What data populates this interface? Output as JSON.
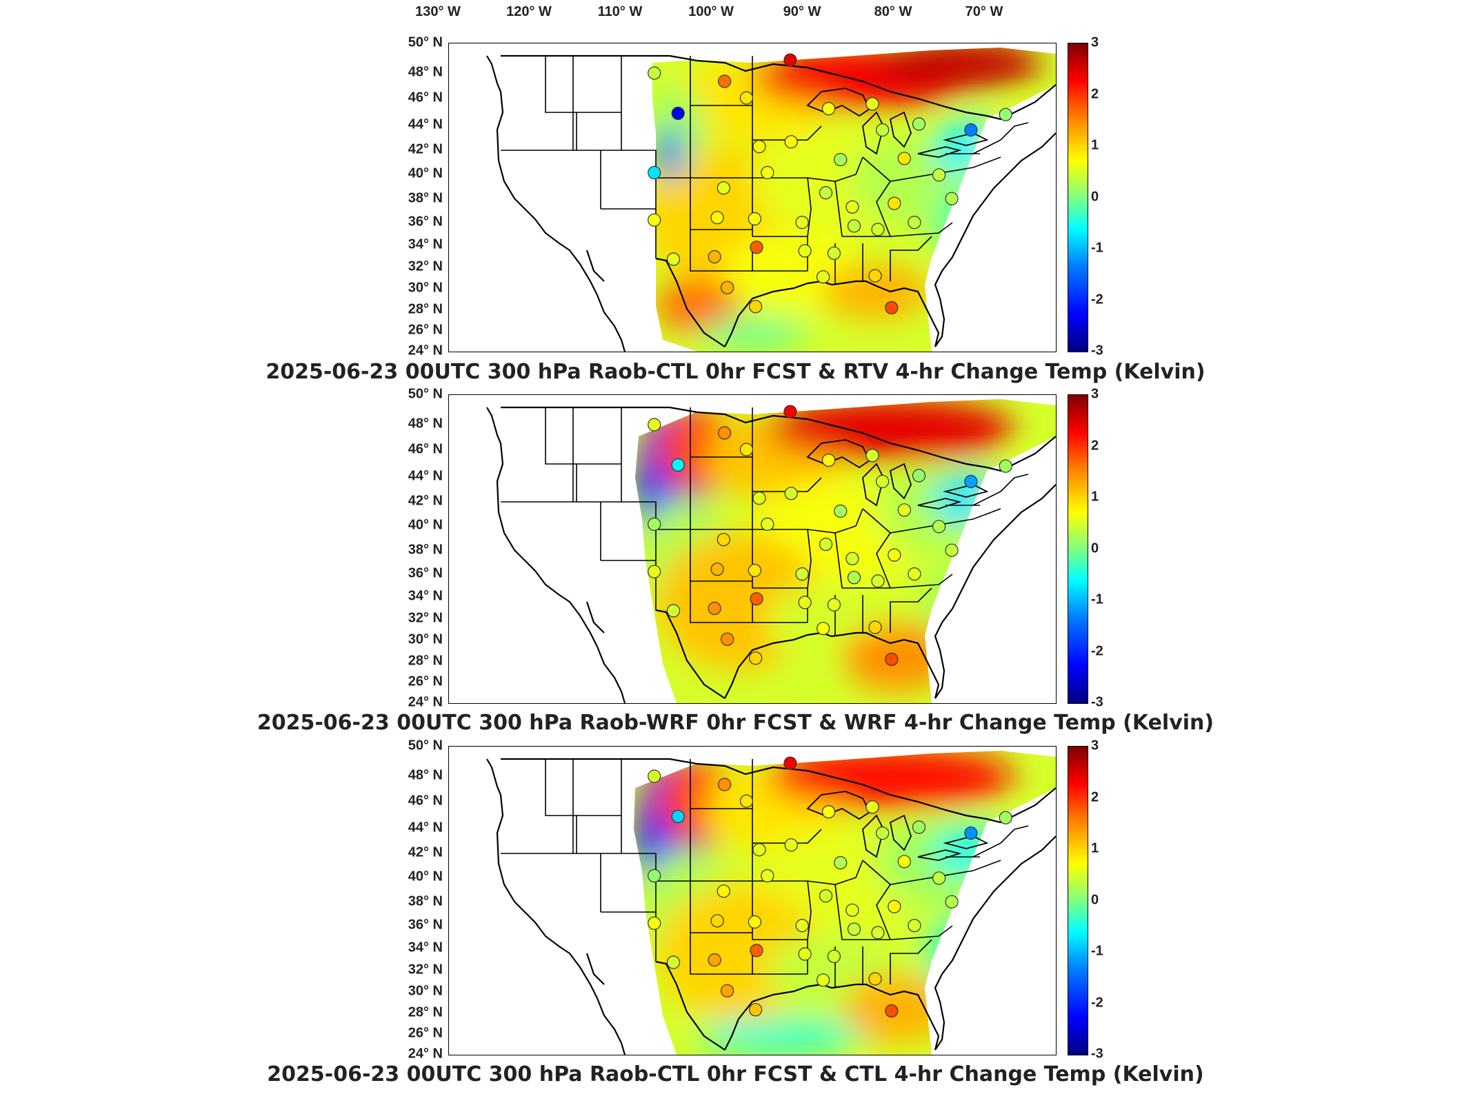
{
  "lon_labels": [
    "130° W",
    "120° W",
    "110° W",
    "100° W",
    "90° W",
    "80° W",
    "70° W"
  ],
  "lat_labels": [
    "50° N",
    "48° N",
    "46° N",
    "44° N",
    "42° N",
    "40° N",
    "38° N",
    "36° N",
    "34° N",
    "32° N",
    "30° N",
    "28° N",
    "26° N",
    "24° N"
  ],
  "colorbar": {
    "ticks": [
      "3",
      "2",
      "1",
      "0",
      "-1",
      "-2",
      "-3"
    ],
    "min": -3,
    "max": 3,
    "colors": [
      "#00007f",
      "#0000ff",
      "#0080ff",
      "#00ffff",
      "#80ff80",
      "#ffff00",
      "#ff8000",
      "#ff0000",
      "#7f0000"
    ]
  },
  "panels": [
    {
      "title": "2025-06-23 00UTC 300 hPa Raob-CTL 0hr FCST & RTV 4-hr Change Temp (Kelvin)"
    },
    {
      "title": "2025-06-23 00UTC 300 hPa Raob-WRF 0hr FCST & WRF 4-hr Change Temp (Kelvin)"
    },
    {
      "title": "2025-06-23 00UTC 300 hPa Raob-CTL 0hr FCST & CTL 4-hr Change Temp (Kelvin)"
    }
  ],
  "stations": [
    {
      "lon": -108.5,
      "lat": 47.5,
      "v": [
        0.4,
        0.6,
        0.5
      ]
    },
    {
      "lon": -100.8,
      "lat": 46.8,
      "v": [
        1.6,
        1.4,
        1.4
      ]
    },
    {
      "lon": -98.4,
      "lat": 45.4,
      "v": [
        0.9,
        0.9,
        0.9
      ]
    },
    {
      "lon": -93.6,
      "lat": 48.6,
      "v": [
        2.4,
        2.3,
        2.3
      ]
    },
    {
      "lon": -89.4,
      "lat": 44.5,
      "v": [
        0.7,
        0.8,
        0.7
      ]
    },
    {
      "lon": -84.6,
      "lat": 44.9,
      "v": [
        0.6,
        0.5,
        0.6
      ]
    },
    {
      "lon": -79.5,
      "lat": 43.2,
      "v": [
        0.2,
        0.1,
        0.2
      ]
    },
    {
      "lon": -73.8,
      "lat": 42.7,
      "v": [
        -1.5,
        -1.3,
        -1.4
      ]
    },
    {
      "lon": -70.0,
      "lat": 44.0,
      "v": [
        0.1,
        0.2,
        0.2
      ]
    },
    {
      "lon": -105.9,
      "lat": 44.1,
      "v": [
        -2.3,
        -0.8,
        -1.0
      ]
    },
    {
      "lon": -108.5,
      "lat": 39.1,
      "v": [
        -0.9,
        0.2,
        0.1
      ]
    },
    {
      "lon": -97.0,
      "lat": 41.3,
      "v": [
        0.8,
        0.6,
        0.6
      ]
    },
    {
      "lon": -93.5,
      "lat": 41.7,
      "v": [
        0.8,
        0.5,
        0.6
      ]
    },
    {
      "lon": -88.1,
      "lat": 40.2,
      "v": [
        0.2,
        0.2,
        0.3
      ]
    },
    {
      "lon": -83.5,
      "lat": 42.7,
      "v": [
        0.4,
        0.5,
        0.4
      ]
    },
    {
      "lon": -81.1,
      "lat": 40.3,
      "v": [
        0.9,
        0.6,
        0.7
      ]
    },
    {
      "lon": -96.1,
      "lat": 39.1,
      "v": [
        0.7,
        0.6,
        0.6
      ]
    },
    {
      "lon": -100.9,
      "lat": 37.8,
      "v": [
        0.6,
        1.0,
        0.8
      ]
    },
    {
      "lon": -86.8,
      "lat": 36.2,
      "v": [
        0.6,
        0.5,
        0.6
      ]
    },
    {
      "lon": -82.2,
      "lat": 36.5,
      "v": [
        0.9,
        0.7,
        0.8
      ]
    },
    {
      "lon": -77.3,
      "lat": 38.9,
      "v": [
        0.4,
        0.3,
        0.4
      ]
    },
    {
      "lon": -89.7,
      "lat": 37.4,
      "v": [
        0.4,
        0.5,
        0.5
      ]
    },
    {
      "lon": -108.5,
      "lat": 35.1,
      "v": [
        0.7,
        0.6,
        0.7
      ]
    },
    {
      "lon": -101.6,
      "lat": 35.3,
      "v": [
        0.8,
        1.2,
        1.0
      ]
    },
    {
      "lon": -97.5,
      "lat": 35.2,
      "v": [
        0.7,
        0.9,
        0.8
      ]
    },
    {
      "lon": -92.3,
      "lat": 34.9,
      "v": [
        0.6,
        0.5,
        0.6
      ]
    },
    {
      "lon": -86.6,
      "lat": 34.6,
      "v": [
        0.4,
        0.3,
        0.4
      ]
    },
    {
      "lon": -84.0,
      "lat": 34.3,
      "v": [
        0.5,
        0.5,
        0.5
      ]
    },
    {
      "lon": -80.0,
      "lat": 34.9,
      "v": [
        0.4,
        0.6,
        0.5
      ]
    },
    {
      "lon": -75.9,
      "lat": 36.9,
      "v": [
        0.3,
        0.4,
        0.3
      ]
    },
    {
      "lon": -106.4,
      "lat": 31.8,
      "v": [
        0.6,
        0.5,
        0.5
      ]
    },
    {
      "lon": -101.9,
      "lat": 32.0,
      "v": [
        1.2,
        1.4,
        1.3
      ]
    },
    {
      "lon": -97.3,
      "lat": 32.8,
      "v": [
        1.7,
        1.7,
        1.7
      ]
    },
    {
      "lon": -92.0,
      "lat": 32.5,
      "v": [
        0.6,
        0.6,
        0.6
      ]
    },
    {
      "lon": -88.8,
      "lat": 32.3,
      "v": [
        0.5,
        0.6,
        0.5
      ]
    },
    {
      "lon": -90.0,
      "lat": 30.3,
      "v": [
        0.6,
        0.7,
        0.6
      ]
    },
    {
      "lon": -84.3,
      "lat": 30.4,
      "v": [
        1.0,
        1.0,
        1.0
      ]
    },
    {
      "lon": -100.5,
      "lat": 29.4,
      "v": [
        1.2,
        1.4,
        1.3
      ]
    },
    {
      "lon": -97.4,
      "lat": 27.8,
      "v": [
        1.0,
        1.0,
        1.1
      ]
    },
    {
      "lon": -82.5,
      "lat": 27.7,
      "v": [
        1.8,
        1.8,
        1.8
      ]
    }
  ]
}
